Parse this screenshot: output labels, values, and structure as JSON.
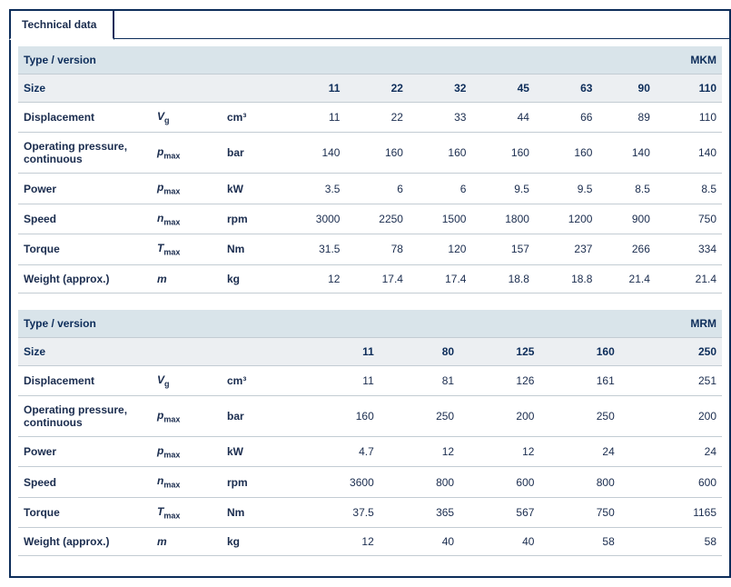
{
  "tab_label": "Technical data",
  "tables": [
    {
      "type_label": "Type / version",
      "series_label": "MKM",
      "size_label": "Size",
      "sizes": [
        "11",
        "22",
        "32",
        "45",
        "63",
        "90",
        "110"
      ],
      "rows": [
        {
          "param": "Displacement",
          "sym": "V",
          "sub": "g",
          "unit": "cm³",
          "vals": [
            "11",
            "22",
            "33",
            "44",
            "66",
            "89",
            "110"
          ]
        },
        {
          "param": "Operating pressure, continuous",
          "sym": "p",
          "sub": "max",
          "unit": "bar",
          "vals": [
            "140",
            "160",
            "160",
            "160",
            "160",
            "140",
            "140"
          ]
        },
        {
          "param": "Power",
          "sym": "p",
          "sub": "max",
          "unit": "kW",
          "vals": [
            "3.5",
            "6",
            "6",
            "9.5",
            "9.5",
            "8.5",
            "8.5"
          ]
        },
        {
          "param": "Speed",
          "sym": "n",
          "sub": "max",
          "unit": "rpm",
          "vals": [
            "3000",
            "2250",
            "1500",
            "1800",
            "1200",
            "900",
            "750"
          ]
        },
        {
          "param": "Torque",
          "sym": "T",
          "sub": "max",
          "unit": "Nm",
          "vals": [
            "31.5",
            "78",
            "120",
            "157",
            "237",
            "266",
            "334"
          ]
        },
        {
          "param": "Weight (approx.)",
          "sym": "m",
          "sub": "",
          "unit": "kg",
          "vals": [
            "12",
            "17.4",
            "17.4",
            "18.8",
            "18.8",
            "21.4",
            "21.4"
          ]
        }
      ]
    },
    {
      "type_label": "Type / version",
      "series_label": "MRM",
      "size_label": "Size",
      "sizes": [
        "11",
        "80",
        "125",
        "160",
        "250"
      ],
      "rows": [
        {
          "param": "Displacement",
          "sym": "V",
          "sub": "g",
          "unit": "cm³",
          "vals": [
            "11",
            "81",
            "126",
            "161",
            "251"
          ]
        },
        {
          "param": "Operating pressure, continuous",
          "sym": "p",
          "sub": "max",
          "unit": "bar",
          "vals": [
            "160",
            "250",
            "200",
            "250",
            "200"
          ]
        },
        {
          "param": "Power",
          "sym": "p",
          "sub": "max",
          "unit": "kW",
          "vals": [
            "4.7",
            "12",
            "12",
            "24",
            "24"
          ]
        },
        {
          "param": "Speed",
          "sym": "n",
          "sub": "max",
          "unit": "rpm",
          "vals": [
            "3600",
            "800",
            "600",
            "800",
            "600"
          ]
        },
        {
          "param": "Torque",
          "sym": "T",
          "sub": "max",
          "unit": "Nm",
          "vals": [
            "37.5",
            "365",
            "567",
            "750",
            "1165"
          ]
        },
        {
          "param": "Weight (approx.)",
          "sym": "m",
          "sub": "",
          "unit": "kg",
          "vals": [
            "12",
            "40",
            "40",
            "58",
            "58"
          ]
        }
      ]
    }
  ]
}
